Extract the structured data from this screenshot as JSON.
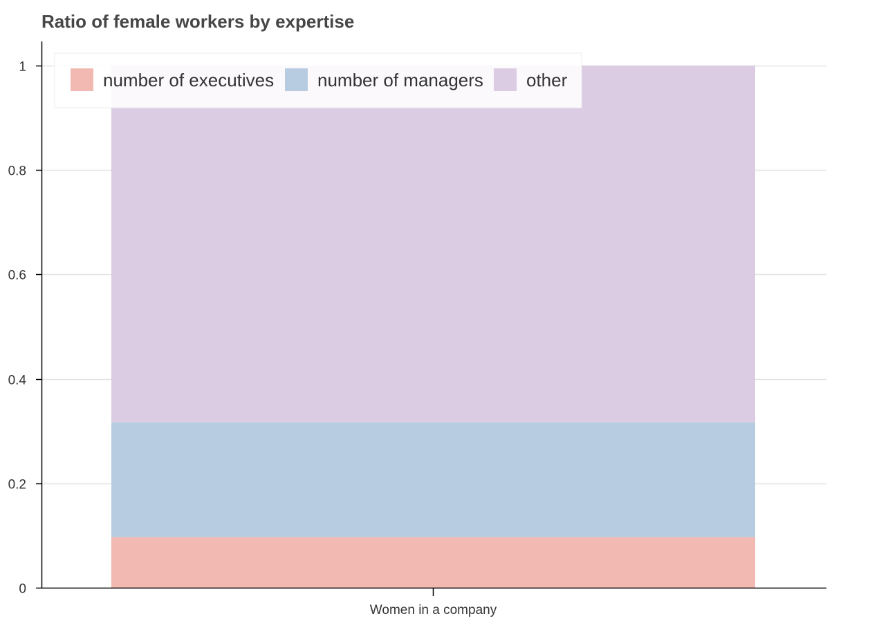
{
  "chart_data": {
    "type": "bar",
    "stacked": true,
    "title": "Ratio of female workers by expertise",
    "xlabel": "",
    "ylabel": "",
    "categories": [
      "Women in a company"
    ],
    "ylim": [
      0,
      1
    ],
    "yticks": [
      0,
      0.2,
      0.4,
      0.6,
      0.8,
      1
    ],
    "ytick_labels": [
      "0",
      "0.2",
      "0.4",
      "0.6",
      "0.8",
      "1"
    ],
    "grid": true,
    "legend_position": "top-left",
    "series": [
      {
        "name": "number of executives",
        "values": [
          0.097
        ],
        "color": "#f2b8b2"
      },
      {
        "name": "number of managers",
        "values": [
          0.22
        ],
        "color": "#b8cce1"
      },
      {
        "name": "other",
        "values": [
          0.683
        ],
        "color": "#dccce3"
      }
    ]
  }
}
